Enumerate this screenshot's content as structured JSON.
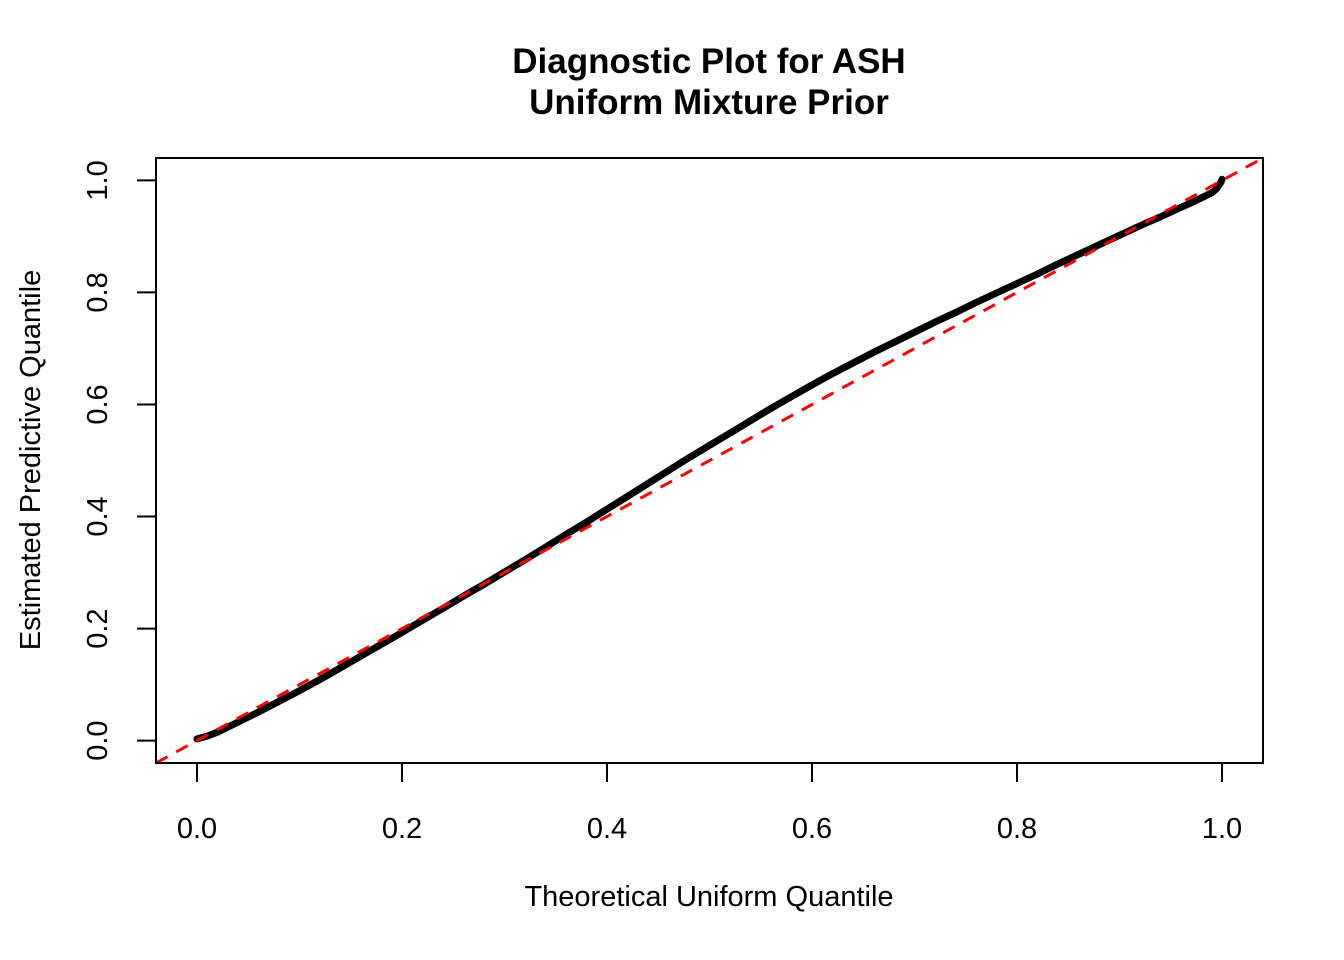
{
  "page": {
    "background": "#ffffff"
  },
  "chart_data": {
    "type": "scatter",
    "title_line1": "Diagnostic Plot for ASH",
    "title_line2": "Uniform Mixture Prior",
    "xlabel": "Theoretical Uniform Quantile",
    "ylabel": "Estimated Predictive Quantile",
    "xlim": [
      0,
      1
    ],
    "ylim": [
      0,
      1
    ],
    "axis_expansion_usr": [
      -0.04,
      1.04
    ],
    "grid": false,
    "legend_position": "none",
    "x_ticks": {
      "values": [
        0,
        0.2,
        0.4,
        0.6,
        0.8,
        1.0
      ],
      "labels": [
        "0.0",
        "0.2",
        "0.4",
        "0.6",
        "0.8",
        "1.0"
      ]
    },
    "y_ticks": {
      "values": [
        0,
        0.2,
        0.4,
        0.6,
        0.8,
        1.0
      ],
      "labels": [
        "0.0",
        "0.2",
        "0.4",
        "0.6",
        "0.8",
        "1.0"
      ]
    },
    "colors": {
      "points": "#000000",
      "reference_line": "#FF0000",
      "axis": "#000000"
    },
    "series": [
      {
        "name": "estimated-predictive-quantiles",
        "style": "dense-points",
        "color": "#000000",
        "points": [
          [
            0.0,
            0.003
          ],
          [
            0.01,
            0.008
          ],
          [
            0.02,
            0.015
          ],
          [
            0.04,
            0.033
          ],
          [
            0.06,
            0.051
          ],
          [
            0.08,
            0.07
          ],
          [
            0.1,
            0.089
          ],
          [
            0.12,
            0.109
          ],
          [
            0.14,
            0.13
          ],
          [
            0.16,
            0.151
          ],
          [
            0.18,
            0.172
          ],
          [
            0.2,
            0.193
          ],
          [
            0.22,
            0.215
          ],
          [
            0.24,
            0.236
          ],
          [
            0.26,
            0.258
          ],
          [
            0.28,
            0.279
          ],
          [
            0.3,
            0.301
          ],
          [
            0.32,
            0.323
          ],
          [
            0.34,
            0.345
          ],
          [
            0.36,
            0.368
          ],
          [
            0.38,
            0.39
          ],
          [
            0.4,
            0.413
          ],
          [
            0.42,
            0.436
          ],
          [
            0.44,
            0.459
          ],
          [
            0.46,
            0.482
          ],
          [
            0.48,
            0.505
          ],
          [
            0.5,
            0.527
          ],
          [
            0.52,
            0.549
          ],
          [
            0.54,
            0.571
          ],
          [
            0.56,
            0.593
          ],
          [
            0.58,
            0.614
          ],
          [
            0.6,
            0.635
          ],
          [
            0.62,
            0.655
          ],
          [
            0.64,
            0.674
          ],
          [
            0.66,
            0.693
          ],
          [
            0.68,
            0.711
          ],
          [
            0.7,
            0.729
          ],
          [
            0.72,
            0.747
          ],
          [
            0.74,
            0.764
          ],
          [
            0.76,
            0.782
          ],
          [
            0.78,
            0.799
          ],
          [
            0.8,
            0.816
          ],
          [
            0.82,
            0.833
          ],
          [
            0.84,
            0.851
          ],
          [
            0.86,
            0.868
          ],
          [
            0.88,
            0.885
          ],
          [
            0.9,
            0.902
          ],
          [
            0.92,
            0.919
          ],
          [
            0.94,
            0.935
          ],
          [
            0.96,
            0.952
          ],
          [
            0.97,
            0.96
          ],
          [
            0.98,
            0.969
          ],
          [
            0.99,
            0.978
          ],
          [
            0.994,
            0.984
          ],
          [
            0.997,
            0.991
          ],
          [
            0.999,
            0.997
          ],
          [
            1.0,
            1.002
          ]
        ]
      },
      {
        "name": "identity-reference-line",
        "style": "dashed-line",
        "color": "#FF0000",
        "from": [
          -0.04,
          -0.04
        ],
        "to": [
          1.04,
          1.04
        ]
      }
    ]
  }
}
